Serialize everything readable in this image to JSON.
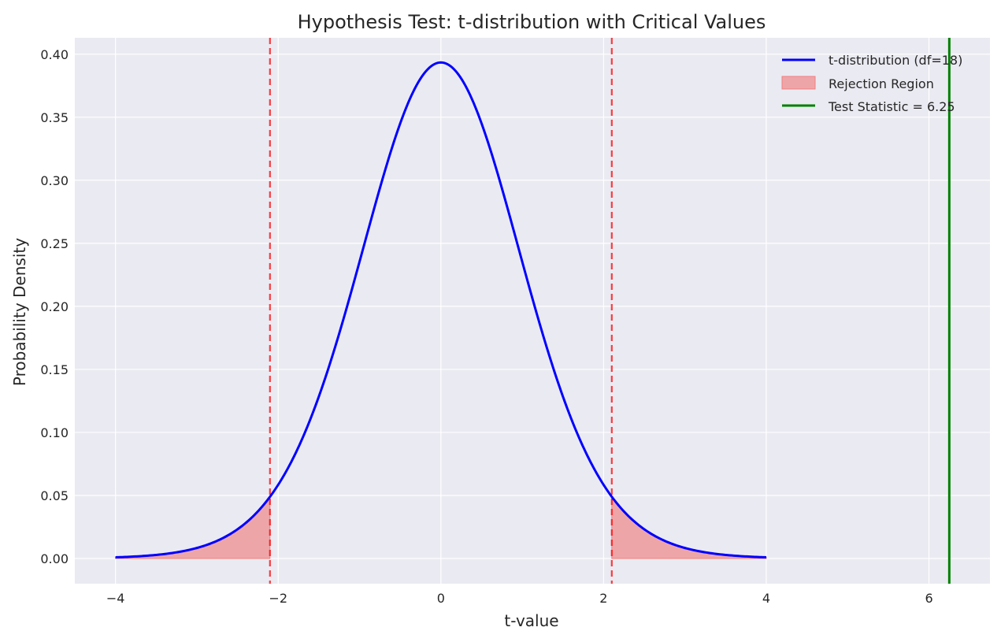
{
  "chart_data": {
    "type": "line",
    "title": "Hypothesis Test: t-distribution with Critical Values",
    "xlabel": "t-value",
    "ylabel": "Probability Density",
    "xlim": [
      -4.5,
      6.75
    ],
    "ylim": [
      -0.02,
      0.413
    ],
    "x_ticks": [
      -4,
      -2,
      0,
      2,
      4,
      6
    ],
    "x_tick_labels": [
      "−4",
      "−2",
      "0",
      "2",
      "4",
      "6"
    ],
    "y_ticks": [
      0.0,
      0.05,
      0.1,
      0.15,
      0.2,
      0.25,
      0.3,
      0.35,
      0.4
    ],
    "y_tick_labels": [
      "0.00",
      "0.05",
      "0.10",
      "0.15",
      "0.20",
      "0.25",
      "0.30",
      "0.35",
      "0.40"
    ],
    "grid": true,
    "legend_position": "top-right",
    "distribution": {
      "df": 18,
      "x_range": [
        -4,
        4
      ]
    },
    "critical_values": [
      -2.101,
      2.101
    ],
    "test_statistic": 6.25,
    "series": [
      {
        "name": "t-distribution (df=18)",
        "kind": "line",
        "color": "#0000ff"
      },
      {
        "name": "Rejection Region",
        "kind": "area",
        "color": "#f08080"
      },
      {
        "name": "Test Statistic = 6.25",
        "kind": "vline",
        "color": "#008000"
      }
    ],
    "critical_line_color": "#ff0000",
    "background_color": "#eaeaf2"
  }
}
